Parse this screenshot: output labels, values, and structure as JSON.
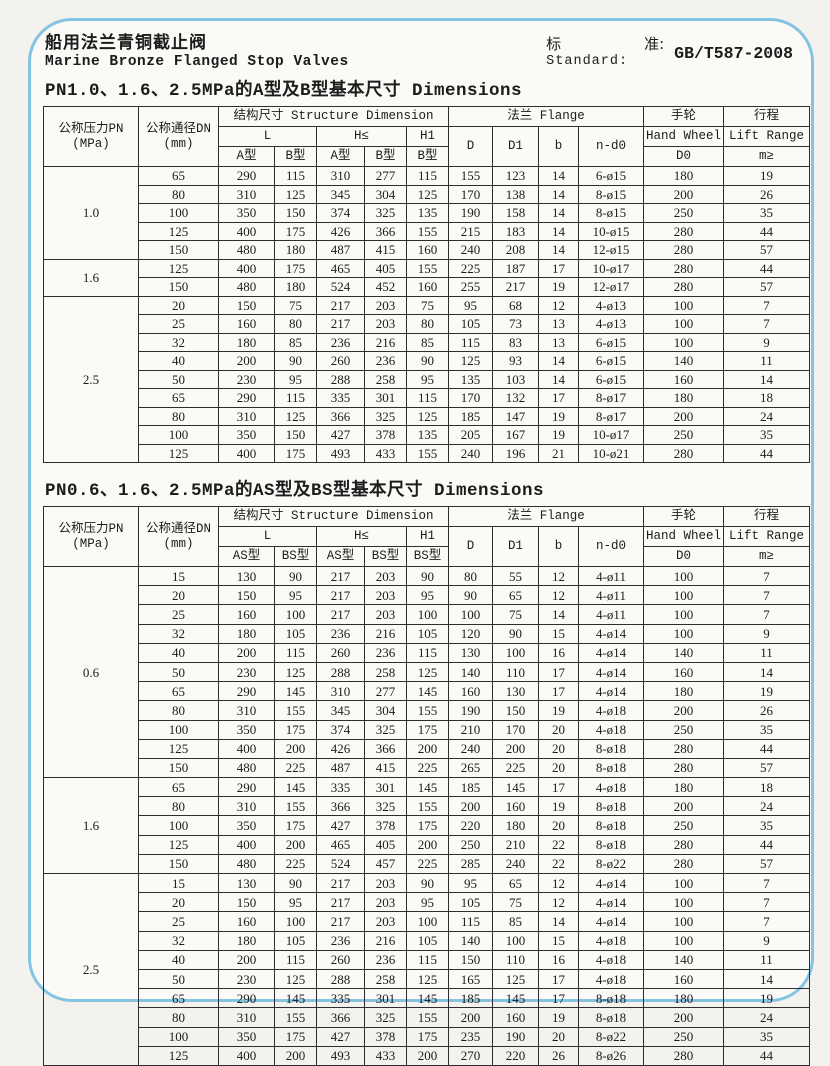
{
  "colors": {
    "frame_border": "#85c3e2",
    "table_line": "#2e2e2e",
    "paper": "#fbfaf7"
  },
  "page": {
    "title_cn": "船用法兰青铜截止阀",
    "title_en": "Marine Bronze Flanged Stop Valves",
    "standard": {
      "label_cn_left": "标",
      "label_cn_right": "准:",
      "label_en": "Standard:",
      "value": "GB/T587-2008"
    }
  },
  "tables": [
    {
      "title": "PN1.0、1.6、2.5MPa的A型及B型基本尺寸 Dimensions",
      "header": {
        "pn_label": "公称压力PN",
        "pn_unit": "(MPa)",
        "dn_label": "公称通径DN",
        "dn_unit": "(mm)",
        "structure_label": "结构尺寸 Structure Dimension",
        "l_label": "L",
        "h_label": "H≤",
        "h1_label": "H1",
        "la": "A型",
        "lb": "B型",
        "ha": "A型",
        "hb": "B型",
        "h1b": "B型",
        "flange_label": "法兰 Flange",
        "d": "D",
        "d1": "D1",
        "b": "b",
        "ndo": "n-d0",
        "hw_cn": "手轮",
        "hw_en": "Hand Wheel",
        "hw_col": "D0",
        "lift_cn": "行程",
        "lift_en": "Lift Range",
        "lift_col": "m≥"
      },
      "groups": [
        {
          "pn": "1.0",
          "rows": [
            [
              "65",
              "290",
              "115",
              "310",
              "277",
              "115",
              "155",
              "123",
              "14",
              "6-ø15",
              "180",
              "19"
            ],
            [
              "80",
              "310",
              "125",
              "345",
              "304",
              "125",
              "170",
              "138",
              "14",
              "8-ø15",
              "200",
              "26"
            ],
            [
              "100",
              "350",
              "150",
              "374",
              "325",
              "135",
              "190",
              "158",
              "14",
              "8-ø15",
              "250",
              "35"
            ],
            [
              "125",
              "400",
              "175",
              "426",
              "366",
              "155",
              "215",
              "183",
              "14",
              "10-ø15",
              "280",
              "44"
            ],
            [
              "150",
              "480",
              "180",
              "487",
              "415",
              "160",
              "240",
              "208",
              "14",
              "12-ø15",
              "280",
              "57"
            ]
          ]
        },
        {
          "pn": "1.6",
          "rows": [
            [
              "125",
              "400",
              "175",
              "465",
              "405",
              "155",
              "225",
              "187",
              "17",
              "10-ø17",
              "280",
              "44"
            ],
            [
              "150",
              "480",
              "180",
              "524",
              "452",
              "160",
              "255",
              "217",
              "19",
              "12-ø17",
              "280",
              "57"
            ]
          ]
        },
        {
          "pn": "2.5",
          "rows": [
            [
              "20",
              "150",
              "75",
              "217",
              "203",
              "75",
              "95",
              "68",
              "12",
              "4-ø13",
              "100",
              "7"
            ],
            [
              "25",
              "160",
              "80",
              "217",
              "203",
              "80",
              "105",
              "73",
              "13",
              "4-ø13",
              "100",
              "7"
            ],
            [
              "32",
              "180",
              "85",
              "236",
              "216",
              "85",
              "115",
              "83",
              "13",
              "6-ø15",
              "100",
              "9"
            ],
            [
              "40",
              "200",
              "90",
              "260",
              "236",
              "90",
              "125",
              "93",
              "14",
              "6-ø15",
              "140",
              "11"
            ],
            [
              "50",
              "230",
              "95",
              "288",
              "258",
              "95",
              "135",
              "103",
              "14",
              "6-ø15",
              "160",
              "14"
            ],
            [
              "65",
              "290",
              "115",
              "335",
              "301",
              "115",
              "170",
              "132",
              "17",
              "8-ø17",
              "180",
              "18"
            ],
            [
              "80",
              "310",
              "125",
              "366",
              "325",
              "125",
              "185",
              "147",
              "19",
              "8-ø17",
              "200",
              "24"
            ],
            [
              "100",
              "350",
              "150",
              "427",
              "378",
              "135",
              "205",
              "167",
              "19",
              "10-ø17",
              "250",
              "35"
            ],
            [
              "125",
              "400",
              "175",
              "493",
              "433",
              "155",
              "240",
              "196",
              "21",
              "10-ø21",
              "280",
              "44"
            ]
          ]
        }
      ]
    },
    {
      "title": "PN0.6、1.6、2.5MPa的AS型及BS型基本尺寸 Dimensions",
      "header": {
        "pn_label": "公称压力PN",
        "pn_unit": "(MPa)",
        "dn_label": "公称通径DN",
        "dn_unit": "(mm)",
        "structure_label": "结构尺寸 Structure Dimension",
        "l_label": "L",
        "h_label": "H≤",
        "h1_label": "H1",
        "la": "AS型",
        "lb": "BS型",
        "ha": "AS型",
        "hb": "BS型",
        "h1b": "BS型",
        "flange_label": "法兰 Flange",
        "d": "D",
        "d1": "D1",
        "b": "b",
        "ndo": "n-d0",
        "hw_cn": "手轮",
        "hw_en": "Hand Wheel",
        "hw_col": "D0",
        "lift_cn": "行程",
        "lift_en": "Lift Range",
        "lift_col": "m≥"
      },
      "groups": [
        {
          "pn": "0.6",
          "rows": [
            [
              "15",
              "130",
              "90",
              "217",
              "203",
              "90",
              "80",
              "55",
              "12",
              "4-ø11",
              "100",
              "7"
            ],
            [
              "20",
              "150",
              "95",
              "217",
              "203",
              "95",
              "90",
              "65",
              "12",
              "4-ø11",
              "100",
              "7"
            ],
            [
              "25",
              "160",
              "100",
              "217",
              "203",
              "100",
              "100",
              "75",
              "14",
              "4-ø11",
              "100",
              "7"
            ],
            [
              "32",
              "180",
              "105",
              "236",
              "216",
              "105",
              "120",
              "90",
              "15",
              "4-ø14",
              "100",
              "9"
            ],
            [
              "40",
              "200",
              "115",
              "260",
              "236",
              "115",
              "130",
              "100",
              "16",
              "4-ø14",
              "140",
              "11"
            ],
            [
              "50",
              "230",
              "125",
              "288",
              "258",
              "125",
              "140",
              "110",
              "17",
              "4-ø14",
              "160",
              "14"
            ],
            [
              "65",
              "290",
              "145",
              "310",
              "277",
              "145",
              "160",
              "130",
              "17",
              "4-ø14",
              "180",
              "19"
            ],
            [
              "80",
              "310",
              "155",
              "345",
              "304",
              "155",
              "190",
              "150",
              "19",
              "4-ø18",
              "200",
              "26"
            ],
            [
              "100",
              "350",
              "175",
              "374",
              "325",
              "175",
              "210",
              "170",
              "20",
              "4-ø18",
              "250",
              "35"
            ],
            [
              "125",
              "400",
              "200",
              "426",
              "366",
              "200",
              "240",
              "200",
              "20",
              "8-ø18",
              "280",
              "44"
            ],
            [
              "150",
              "480",
              "225",
              "487",
              "415",
              "225",
              "265",
              "225",
              "20",
              "8-ø18",
              "280",
              "57"
            ]
          ]
        },
        {
          "pn": "1.6",
          "rows": [
            [
              "65",
              "290",
              "145",
              "335",
              "301",
              "145",
              "185",
              "145",
              "17",
              "4-ø18",
              "180",
              "18"
            ],
            [
              "80",
              "310",
              "155",
              "366",
              "325",
              "155",
              "200",
              "160",
              "19",
              "8-ø18",
              "200",
              "24"
            ],
            [
              "100",
              "350",
              "175",
              "427",
              "378",
              "175",
              "220",
              "180",
              "20",
              "8-ø18",
              "250",
              "35"
            ],
            [
              "125",
              "400",
              "200",
              "465",
              "405",
              "200",
              "250",
              "210",
              "22",
              "8-ø18",
              "280",
              "44"
            ],
            [
              "150",
              "480",
              "225",
              "524",
              "457",
              "225",
              "285",
              "240",
              "22",
              "8-ø22",
              "280",
              "57"
            ]
          ]
        },
        {
          "pn": "2.5",
          "rows": [
            [
              "15",
              "130",
              "90",
              "217",
              "203",
              "90",
              "95",
              "65",
              "12",
              "4-ø14",
              "100",
              "7"
            ],
            [
              "20",
              "150",
              "95",
              "217",
              "203",
              "95",
              "105",
              "75",
              "12",
              "4-ø14",
              "100",
              "7"
            ],
            [
              "25",
              "160",
              "100",
              "217",
              "203",
              "100",
              "115",
              "85",
              "14",
              "4-ø14",
              "100",
              "7"
            ],
            [
              "32",
              "180",
              "105",
              "236",
              "216",
              "105",
              "140",
              "100",
              "15",
              "4-ø18",
              "100",
              "9"
            ],
            [
              "40",
              "200",
              "115",
              "260",
              "236",
              "115",
              "150",
              "110",
              "16",
              "4-ø18",
              "140",
              "11"
            ],
            [
              "50",
              "230",
              "125",
              "288",
              "258",
              "125",
              "165",
              "125",
              "17",
              "4-ø18",
              "160",
              "14"
            ],
            [
              "65",
              "290",
              "145",
              "335",
              "301",
              "145",
              "185",
              "145",
              "17",
              "8-ø18",
              "180",
              "19"
            ],
            [
              "80",
              "310",
              "155",
              "366",
              "325",
              "155",
              "200",
              "160",
              "19",
              "8-ø18",
              "200",
              "24"
            ],
            [
              "100",
              "350",
              "175",
              "427",
              "378",
              "175",
              "235",
              "190",
              "20",
              "8-ø22",
              "250",
              "35"
            ],
            [
              "125",
              "400",
              "200",
              "493",
              "433",
              "200",
              "270",
              "220",
              "26",
              "8-ø26",
              "280",
              "44"
            ]
          ]
        }
      ]
    }
  ]
}
